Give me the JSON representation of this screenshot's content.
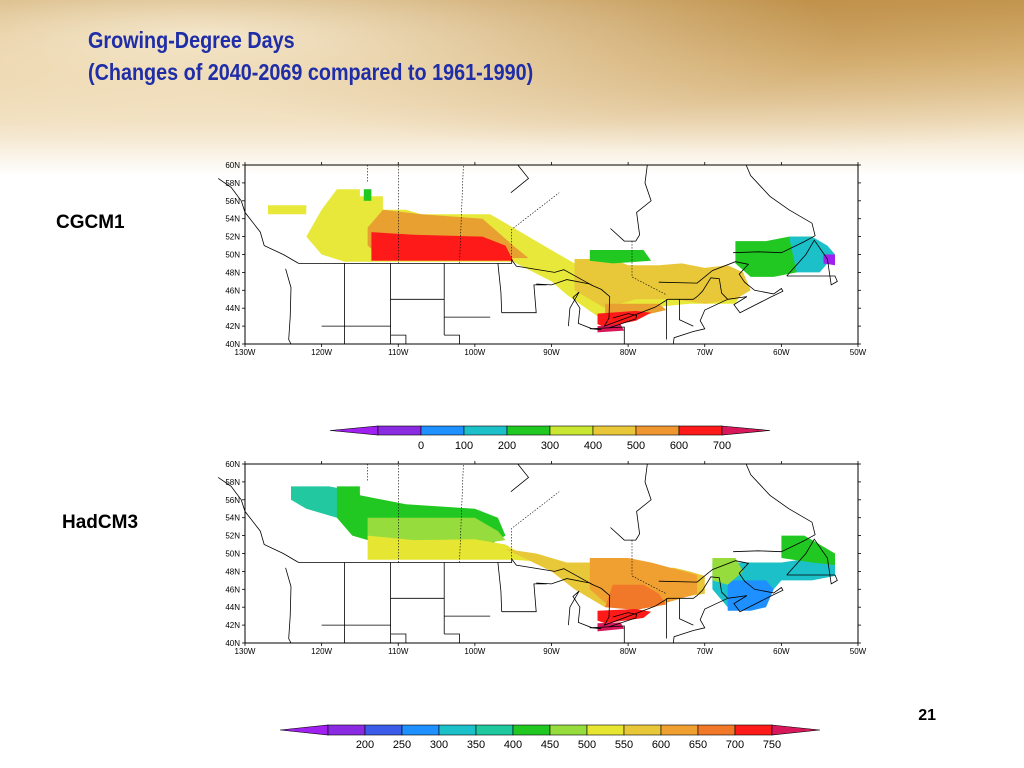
{
  "slide": {
    "title_line1": "Growing-Degree Days",
    "title_line2": "(Changes of 2040-2069 compared to 1961-1990)",
    "page_number": "21",
    "title_color": "#1f2ea8"
  },
  "maps": [
    {
      "label": "CGCM1",
      "lat_ticks": [
        "60N",
        "58N",
        "56N",
        "54N",
        "52N",
        "50N",
        "48N",
        "46N",
        "44N",
        "42N",
        "40N"
      ],
      "lon_ticks": [
        "130W",
        "120W",
        "110W",
        "100W",
        "90W",
        "80W",
        "70W",
        "60W",
        "50W"
      ]
    },
    {
      "label": "HadCM3",
      "lat_ticks": [
        "60N",
        "58N",
        "56N",
        "54N",
        "52N",
        "50N",
        "48N",
        "46N",
        "44N",
        "42N",
        "40N"
      ],
      "lon_ticks": [
        "130W",
        "120W",
        "110W",
        "100W",
        "90W",
        "80W",
        "70W",
        "60W",
        "50W"
      ]
    }
  ],
  "colorbars": [
    {
      "labels": [
        "0",
        "100",
        "200",
        "300",
        "400",
        "500",
        "600",
        "700"
      ],
      "colors": [
        "#a020f0",
        "#8a2be2",
        "#1e90ff",
        "#1cc0c8",
        "#22c822",
        "#c8e632",
        "#e8c838",
        "#f09630",
        "#ff1a1a",
        "#d8185a"
      ]
    },
    {
      "labels": [
        "200",
        "250",
        "300",
        "350",
        "400",
        "450",
        "500",
        "550",
        "600",
        "650",
        "700",
        "750"
      ],
      "colors": [
        "#a020f0",
        "#8a2be2",
        "#3a5ce8",
        "#1e90ff",
        "#1cc0c8",
        "#20c8a0",
        "#22c822",
        "#96dc3c",
        "#e6e632",
        "#e8c838",
        "#f0a030",
        "#f07828",
        "#ff1a1a",
        "#d8185a"
      ]
    }
  ]
}
